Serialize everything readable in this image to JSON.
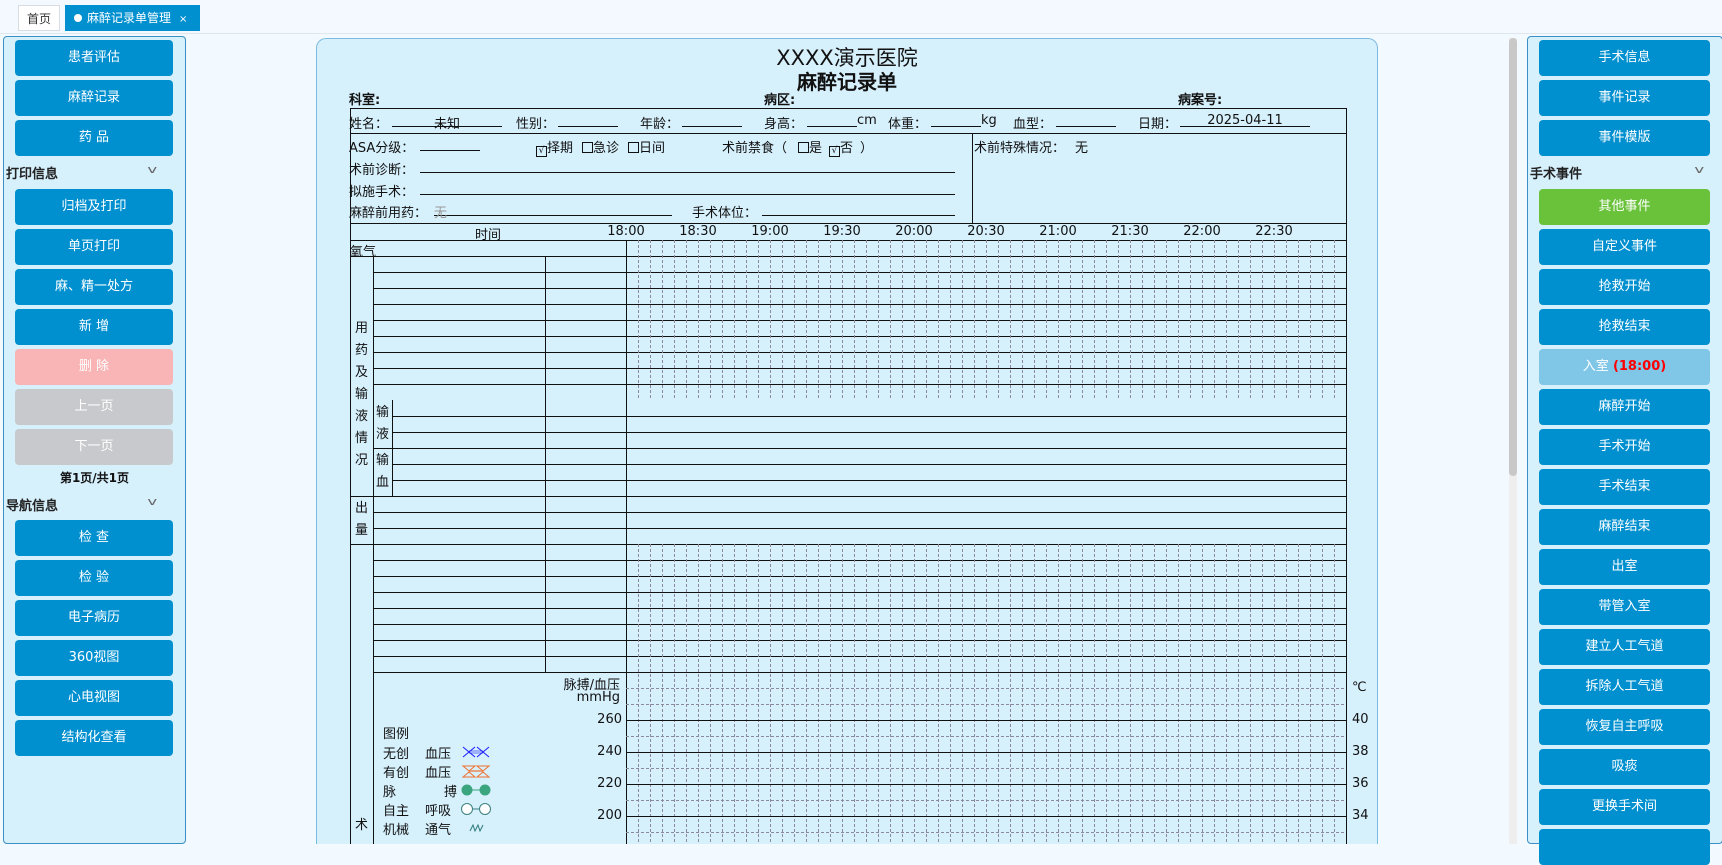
{
  "tabs": [
    {
      "label": "首页"
    },
    {
      "label": "麻醉记录单管理",
      "close": "×"
    }
  ],
  "left": {
    "top_buttons": [
      "患者评估",
      "麻醉记录",
      "药 品"
    ],
    "print_section": "打印信息",
    "print_buttons": [
      "归档及打印",
      "单页打印",
      "麻、精一处方",
      "新 增",
      "删 除",
      "上一页",
      "下一页"
    ],
    "page_info": "第1页/共1页",
    "nav_section": "导航信息",
    "nav_buttons": [
      "检 查",
      "检 验",
      "电子病历",
      "360视图",
      "心电视图",
      "结构化查看"
    ]
  },
  "right": {
    "top_buttons": [
      "手术信息",
      "事件记录",
      "事件模版"
    ],
    "event_section": "手术事件",
    "event_buttons": [
      "其他事件",
      "自定义事件",
      "抢救开始",
      "抢救结束",
      "入室",
      "麻醉开始",
      "手术开始",
      "手术结束",
      "麻醉结束",
      "出室",
      "带管入室",
      "建立人工气道",
      "拆除人工气道",
      "恢复自主呼吸",
      "吸痰",
      "更换手术间",
      ""
    ],
    "room_in_time": "(18:00)"
  },
  "form": {
    "hospital": "XXXX演示医院",
    "title": "麻醉记录单",
    "dept_label": "科室:",
    "ward_label": "病区:",
    "case_label": "病案号:",
    "name_label": "姓名：",
    "name": "未知",
    "sex_label": "性别：",
    "age_label": "年龄：",
    "height_label": "身高：",
    "height_unit": "cm",
    "weight_label": "体重：",
    "weight_unit": "kg",
    "blood_label": "血型：",
    "date_label": "日期：",
    "date": "2025-04-11",
    "asa_label": "ASA分级：",
    "type_options": [
      {
        "label": "择期",
        "checked": true
      },
      {
        "label": "急诊",
        "checked": false
      },
      {
        "label": "日间",
        "checked": false
      }
    ],
    "fasting_label": "术前禁食（",
    "fasting_yes": "是",
    "fasting_no": "否",
    "fasting_close": "）",
    "special_label": "术前特殊情况：",
    "special": "无",
    "diag_label": "术前诊断：",
    "surgery_label": "拟施手术：",
    "premed_label": "麻醉前用药：",
    "premed": "无",
    "position_label": "手术体位：",
    "time_label": "时间",
    "times": [
      "18:00",
      "18:30",
      "19:00",
      "19:30",
      "20:00",
      "20:30",
      "21:00",
      "21:30",
      "22:00",
      "22:30"
    ],
    "oxygen_label": "氧气",
    "med_label": "用药及输液情况",
    "infusion_label": "输液",
    "transfusion_label": "输血",
    "output_label": "出量",
    "intraop_label": "术",
    "bp_axis_label": "脉搏/血压",
    "bp_unit": "mmHg",
    "bp_ticks": [
      "260",
      "240",
      "220",
      "200"
    ],
    "temp_unit": "℃",
    "temp_ticks": [
      "40",
      "38",
      "36",
      "34"
    ],
    "legend_title": "图例",
    "legend": [
      {
        "a": "无创",
        "b": "血压",
        "icon": "noninvasive-bp-icon",
        "color": "#1a1aff"
      },
      {
        "a": "有创",
        "b": "血压",
        "icon": "invasive-bp-icon",
        "color": "#f07030"
      },
      {
        "a": "脉",
        "b": "搏",
        "icon": "pulse-icon",
        "color": "#3aa57f"
      },
      {
        "a": "自主",
        "b": "呼吸",
        "icon": "spontaneous-breath-icon",
        "color": "#3a8080"
      },
      {
        "a": "机械",
        "b": "通气",
        "icon": "mechanical-ventilation-icon",
        "color": "#2a7a7a"
      }
    ]
  }
}
